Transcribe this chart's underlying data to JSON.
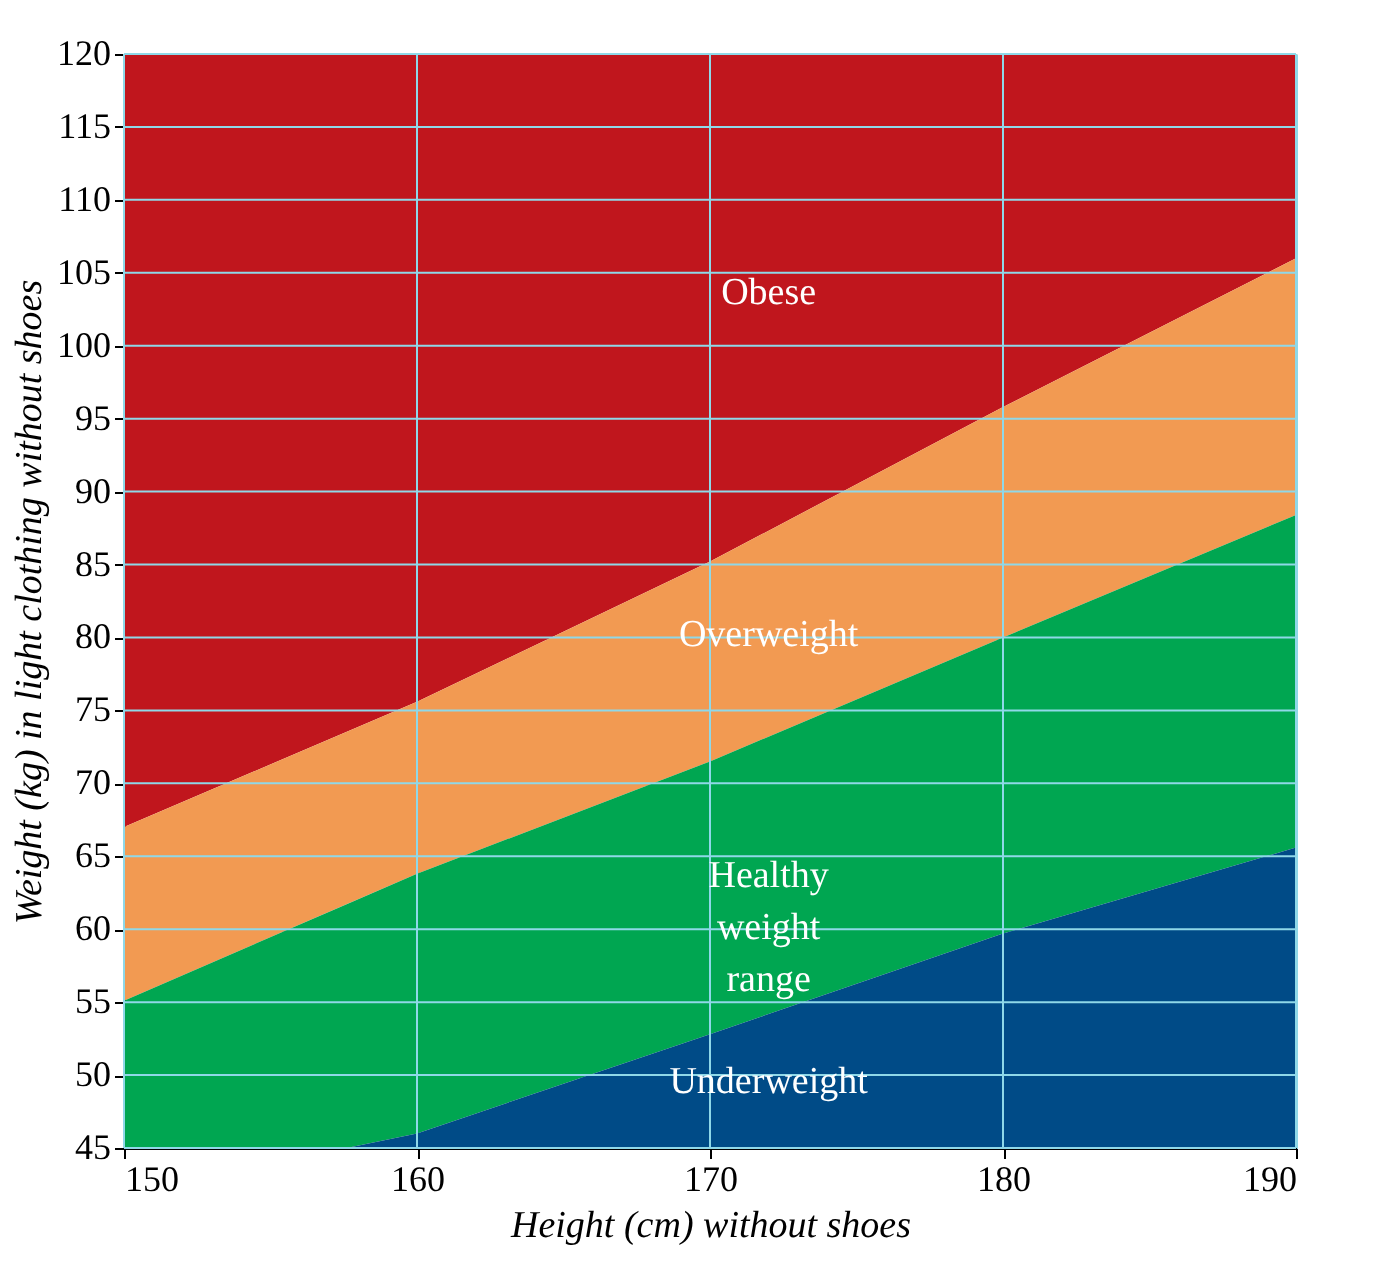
{
  "chart_data": {
    "type": "area",
    "xlabel": "Height (cm) without shoes",
    "ylabel": "Weight (kg) in light clothing without shoes",
    "xlim": [
      150,
      190
    ],
    "xticks": [
      150,
      160,
      170,
      180,
      190
    ],
    "ylim": [
      45,
      120
    ],
    "yticks": [
      45,
      50,
      55,
      60,
      65,
      70,
      75,
      80,
      85,
      90,
      95,
      100,
      105,
      110,
      115,
      120
    ],
    "grid": true,
    "series": [
      {
        "name": "Obese",
        "color": "#c0161d",
        "x": [
          150,
          160,
          170,
          180,
          190
        ],
        "values": [
          120,
          120,
          120,
          120,
          120
        ]
      },
      {
        "name": "Overweight",
        "color": "#f29a52",
        "x": [
          150,
          160,
          170,
          180,
          190
        ],
        "values": [
          67,
          75.6,
          85.2,
          95.8,
          106
        ]
      },
      {
        "name": "Healthy\nweight\nrange",
        "color": "#00a651",
        "x": [
          150,
          160,
          170,
          180,
          190
        ],
        "values": [
          55.1,
          63.8,
          71.5,
          80,
          88.4
        ]
      },
      {
        "name": "Underweight",
        "color": "#004b87",
        "x": [
          157.6,
          160,
          170,
          180,
          190
        ],
        "values": [
          45,
          46,
          52.8,
          59.7,
          65.6
        ]
      }
    ]
  }
}
